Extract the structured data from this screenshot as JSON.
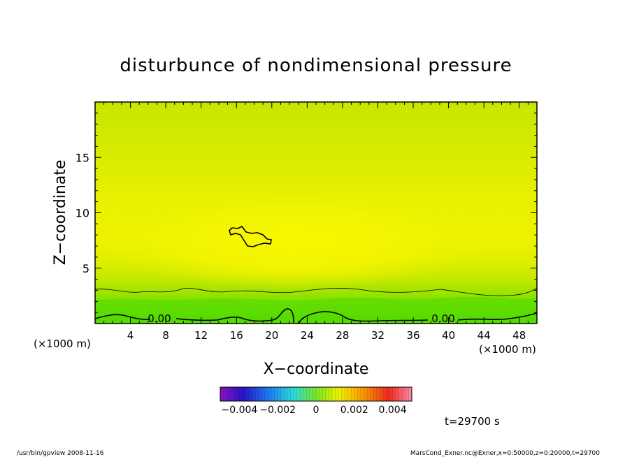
{
  "chart_data": {
    "type": "heatmap",
    "title": "disturbunce of nondimensional pressure",
    "xlabel": "X−coordinate",
    "ylabel": "Z−coordinate",
    "x_unit": "(×1000 m)",
    "y_unit": "(×1000 m)",
    "xlim": [
      0,
      50
    ],
    "ylim": [
      0,
      20
    ],
    "x_ticks": [
      "4",
      "8",
      "12",
      "16",
      "20",
      "24",
      "28",
      "32",
      "36",
      "40",
      "44",
      "48"
    ],
    "x_tick_values": [
      4,
      8,
      12,
      16,
      20,
      24,
      28,
      32,
      36,
      40,
      44,
      48
    ],
    "y_ticks": [
      "5",
      "10",
      "15"
    ],
    "y_tick_values": [
      5,
      10,
      15
    ],
    "colorbar": {
      "min": -0.005,
      "max": 0.005,
      "tick_labels": [
        "−0.004",
        "−0.002",
        "0",
        "0.002",
        "0.004"
      ],
      "tick_values": [
        -0.004,
        -0.002,
        0,
        0.002,
        0.004
      ]
    },
    "contour_labels": [
      {
        "text": "0.00",
        "x": 7,
        "z": 0.5
      },
      {
        "text": "0.00",
        "x": 38.8,
        "z": 0.5
      }
    ],
    "time_label": "t=29700 s"
  },
  "footer": {
    "left": "/usr/bin/gpview   2008-11-16",
    "right": "MarsCond_Exner.nc@Exner,x=0:50000,z=0:20000,t=29700"
  },
  "colors": {
    "background_field": "#d8ec00",
    "upper_field": "#e6f000",
    "core_field": "#f4f600",
    "lower_field": "#66e200"
  }
}
